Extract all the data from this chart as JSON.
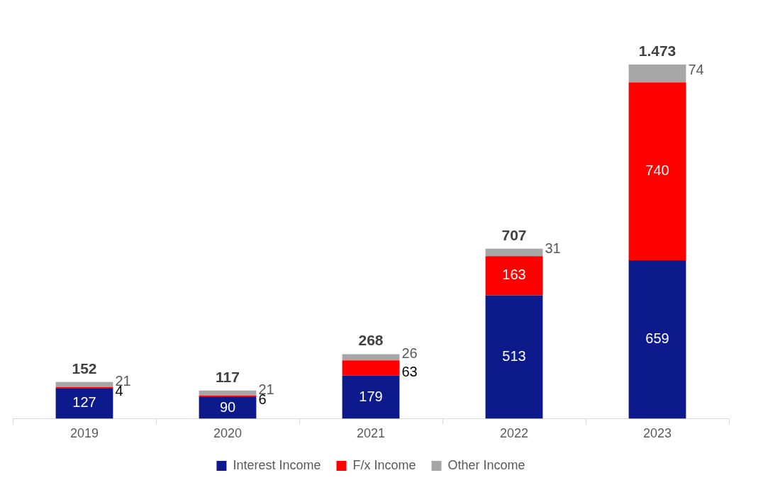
{
  "chart_data": {
    "type": "bar",
    "stacked": true,
    "categories": [
      "2019",
      "2020",
      "2021",
      "2022",
      "2023"
    ],
    "series": [
      {
        "name": "Interest Income",
        "color": "#0c1a8c",
        "values": [
          127,
          90,
          179,
          513,
          659
        ]
      },
      {
        "name": "F/x Income",
        "color": "#ff0000",
        "values": [
          4,
          6,
          63,
          163,
          740
        ]
      },
      {
        "name": "Other Income",
        "color": "#a6a6a6",
        "values": [
          21,
          21,
          26,
          31,
          74
        ]
      }
    ],
    "data_labels": true,
    "totals": [
      "152",
      "117",
      "268",
      "707",
      "1.473"
    ],
    "legend": "bottom",
    "grid": false
  }
}
